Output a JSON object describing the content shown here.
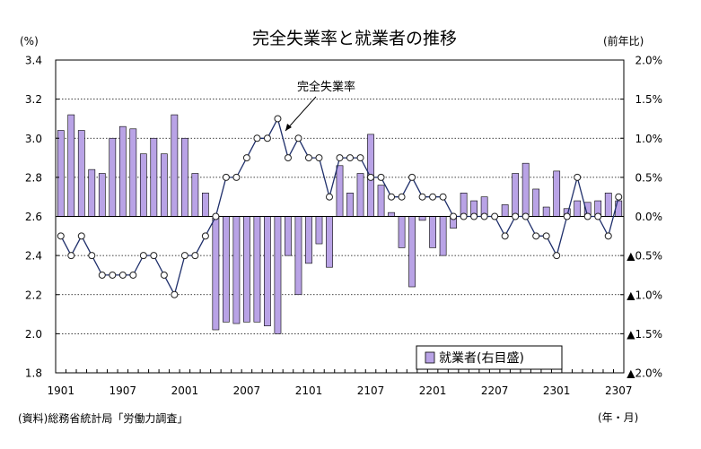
{
  "chart_data": {
    "type": "bar+line",
    "title": "完全失業率と就業者の推移",
    "left_unit": "(%)",
    "right_unit": "(前年比)",
    "x_unit": "(年・月)",
    "source": "(資料)総務省統計局「労働力調査」",
    "line_annotation": "完全失業率",
    "legend_label": "就業者(右目盛)",
    "colors": {
      "bar_fill": "#b9a3e6",
      "bar_stroke": "#000000",
      "line": "#1f2f6b",
      "marker_fill": "#ffffff"
    },
    "left_axis": {
      "min": 1.8,
      "max": 3.4,
      "ticks": [
        "1.8",
        "2.0",
        "2.2",
        "2.4",
        "2.6",
        "2.8",
        "3.0",
        "3.2",
        "3.4"
      ]
    },
    "right_axis": {
      "min": -2.0,
      "max": 2.0,
      "ticks": [
        "▲2.0%",
        "▲1.5%",
        "▲1.0%",
        "▲0.5%",
        "0.0%",
        "0.5%",
        "1.0%",
        "1.5%",
        "2.0%"
      ]
    },
    "x_tick_labels": [
      "1901",
      "1907",
      "2001",
      "2007",
      "2101",
      "2107",
      "2201",
      "2207",
      "2301",
      "2307"
    ],
    "x": [
      "1901",
      "1902",
      "1903",
      "1904",
      "1905",
      "1906",
      "1907",
      "1908",
      "1909",
      "1910",
      "1911",
      "1912",
      "2001",
      "2002",
      "2003",
      "2004",
      "2005",
      "2006",
      "2007",
      "2008",
      "2009",
      "2010",
      "2011",
      "2012",
      "2101",
      "2102",
      "2103",
      "2104",
      "2105",
      "2106",
      "2107",
      "2108",
      "2109",
      "2110",
      "2111",
      "2112",
      "2201",
      "2202",
      "2203",
      "2204",
      "2205",
      "2206",
      "2207",
      "2208",
      "2209",
      "2210",
      "2211",
      "2212",
      "2301",
      "2302",
      "2303",
      "2304",
      "2305",
      "2306",
      "2307"
    ],
    "series": [
      {
        "name": "完全失業率",
        "axis": "left",
        "kind": "line",
        "values": [
          2.5,
          2.4,
          2.5,
          2.4,
          2.3,
          2.3,
          2.3,
          2.3,
          2.4,
          2.4,
          2.3,
          2.2,
          2.4,
          2.4,
          2.5,
          2.6,
          2.8,
          2.8,
          2.9,
          3.0,
          3.0,
          3.1,
          2.9,
          3.0,
          2.9,
          2.9,
          2.7,
          2.9,
          2.9,
          2.9,
          2.8,
          2.8,
          2.7,
          2.7,
          2.8,
          2.7,
          2.7,
          2.7,
          2.6,
          2.6,
          2.6,
          2.6,
          2.6,
          2.5,
          2.6,
          2.6,
          2.5,
          2.5,
          2.4,
          2.6,
          2.8,
          2.6,
          2.6,
          2.5,
          2.7
        ]
      },
      {
        "name": "就業者(右目盛)",
        "axis": "right",
        "kind": "bar",
        "values": [
          1.1,
          1.3,
          1.1,
          0.6,
          0.55,
          1.0,
          1.15,
          1.12,
          0.8,
          1.0,
          0.8,
          1.3,
          1.0,
          0.55,
          0.3,
          -1.45,
          -1.35,
          -1.37,
          -1.35,
          -1.35,
          -1.4,
          -1.5,
          -0.5,
          -1.0,
          -0.6,
          -0.35,
          -0.65,
          0.65,
          0.3,
          0.55,
          1.05,
          0.4,
          0.05,
          -0.4,
          -0.9,
          -0.05,
          -0.4,
          -0.5,
          -0.15,
          0.3,
          0.2,
          0.25,
          0.0,
          0.15,
          0.55,
          0.68,
          0.35,
          0.12,
          0.58,
          0.1,
          0.2,
          0.18,
          0.2,
          0.3,
          0.2
        ]
      }
    ]
  }
}
